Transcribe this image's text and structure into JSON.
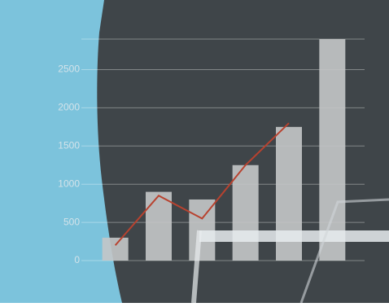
{
  "chart_data": {
    "type": "bar",
    "categories": [
      null,
      null,
      null,
      null,
      null,
      null
    ],
    "series": [
      {
        "type": "bar",
        "color": "#c4c6c8",
        "values": [
          300,
          900,
          800,
          1250,
          1750,
          2900
        ]
      },
      {
        "type": "line",
        "color": "#b8422f",
        "values": [
          200,
          850,
          550,
          1250,
          1800,
          null
        ]
      }
    ],
    "ylim": [
      0,
      2900
    ],
    "yticks": [
      0,
      500,
      1000,
      1500,
      2000,
      2500
    ],
    "grid": true
  }
}
